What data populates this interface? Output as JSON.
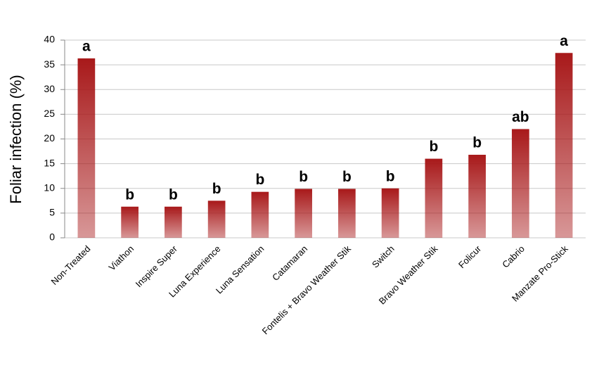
{
  "chart_data": {
    "type": "bar",
    "y_label": "Foliar infection (%)",
    "categories": [
      "Non-Treated",
      "Viathon",
      "Inspire Super",
      "Luna Experience",
      "Luna Sensation",
      "Catamaran",
      "Fontelis + Bravo Weather Stik",
      "Switch",
      "Bravo Weather Stik",
      "Folicur",
      "Cabrio",
      "Manzate Pro-Stick"
    ],
    "values": [
      36.3,
      6.3,
      6.3,
      7.5,
      9.3,
      9.9,
      9.9,
      10,
      16,
      16.8,
      22,
      37.4
    ],
    "annotations": [
      "a",
      "b",
      "b",
      "b",
      "b",
      "b",
      "b",
      "b",
      "b",
      "b",
      "ab",
      "a"
    ],
    "color": "#a8191a",
    "ylim": [
      0,
      40
    ],
    "yticks": [
      0,
      5,
      10,
      15,
      20,
      25,
      30,
      35,
      40
    ],
    "grid": true
  }
}
